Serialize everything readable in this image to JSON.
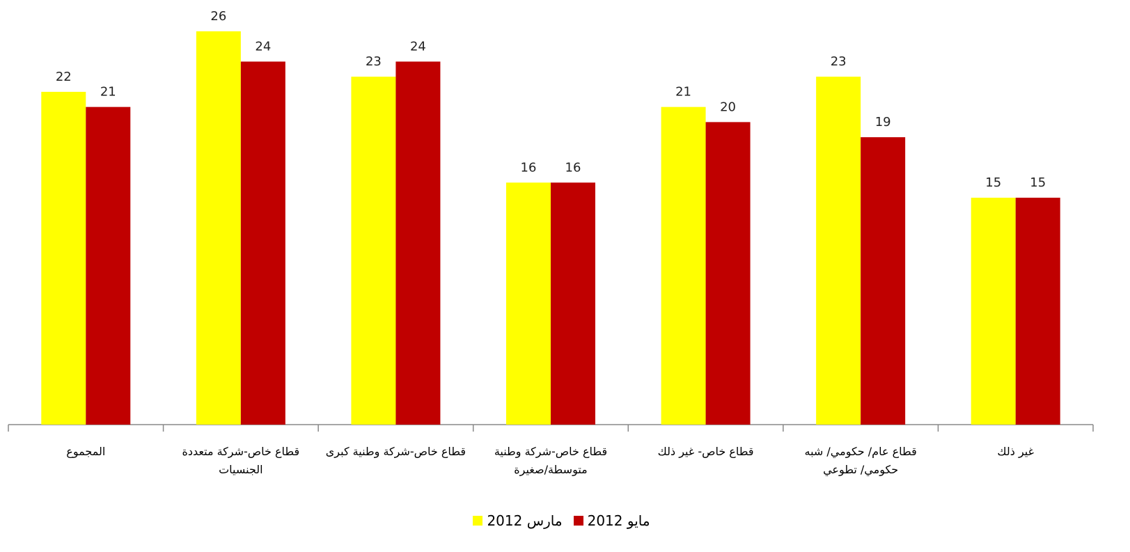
{
  "chart_data": {
    "type": "bar",
    "categories": [
      "المجموع",
      "قطاع خاص-شركة متعددة الجنسيات",
      "قطاع خاص-شركة وطنية كبرى",
      "قطاع خاص-شركة وطنية متوسطة/صغيرة",
      "قطاع خاص- غير ذلك",
      "قطاع عام/ حكومي/ شبه حكومي/ تطوعي",
      "غير ذلك"
    ],
    "series": [
      {
        "name": "مارس 2012",
        "color": "#ffff00",
        "values": [
          22,
          26,
          23,
          16,
          21,
          23,
          15
        ]
      },
      {
        "name": "مايو 2012",
        "color": "#c00000",
        "values": [
          21,
          24,
          24,
          16,
          20,
          19,
          15
        ]
      }
    ],
    "legend": "bottom"
  }
}
